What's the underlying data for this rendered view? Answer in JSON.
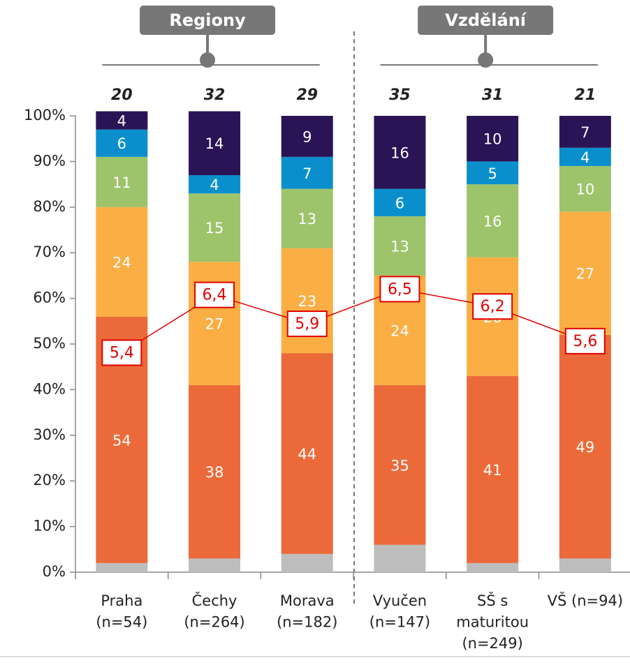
{
  "chart_data": {
    "type": "stacked_bar_line",
    "groups": [
      {
        "label": "Regiony",
        "from": 0,
        "to": 2
      },
      {
        "label": "Vzdělání",
        "from": 3,
        "to": 5
      }
    ],
    "categories": [
      "Praha\n(n=54)",
      "Čechy\n(n=264)",
      "Morava\n(n=182)",
      "Vyučen\n(n=147)",
      "SŠ s\nmaturitou\n(n=249)",
      "VŠ  (n=94)"
    ],
    "top_labels": [
      20,
      32,
      29,
      35,
      31,
      21
    ],
    "series": [
      {
        "color": "#bdbdbd",
        "show_labels": false,
        "values": [
          2,
          3,
          4,
          6,
          2,
          3
        ]
      },
      {
        "color": "#ec6a3a",
        "show_labels": true,
        "values": [
          54,
          38,
          44,
          35,
          41,
          49
        ]
      },
      {
        "color": "#fbae44",
        "show_labels": true,
        "values": [
          24,
          27,
          23,
          24,
          26,
          27
        ]
      },
      {
        "color": "#9dc36b",
        "show_labels": true,
        "values": [
          11,
          15,
          13,
          13,
          16,
          10
        ]
      },
      {
        "color": "#0a8fcc",
        "show_labels": true,
        "values": [
          6,
          4,
          7,
          6,
          5,
          4
        ]
      },
      {
        "color": "#2a1456",
        "show_labels": true,
        "values": [
          4,
          14,
          9,
          16,
          10,
          7
        ]
      }
    ],
    "line": {
      "color": "#e00000",
      "axis": "y2",
      "values": [
        5.4,
        6.4,
        5.9,
        6.5,
        6.2,
        5.6
      ],
      "value_labels": [
        "5,4",
        "6,4",
        "5,9",
        "6,5",
        "6,2",
        "5,6"
      ]
    },
    "ylim": [
      0,
      100
    ],
    "y2lim": [
      1.6,
      9.5
    ],
    "yticks": [
      {
        "value": 0,
        "label": "0%"
      },
      {
        "value": 10,
        "label": "10%"
      },
      {
        "value": 20,
        "label": "20%"
      },
      {
        "value": 30,
        "label": "30%"
      },
      {
        "value": 40,
        "label": "40%"
      },
      {
        "value": 50,
        "label": "50%"
      },
      {
        "value": 60,
        "label": "60%"
      },
      {
        "value": 70,
        "label": "70%"
      },
      {
        "value": 80,
        "label": "80%"
      },
      {
        "value": 90,
        "label": "90%"
      },
      {
        "value": {
          "value": 100
        },
        "label": "100%"
      }
    ]
  }
}
